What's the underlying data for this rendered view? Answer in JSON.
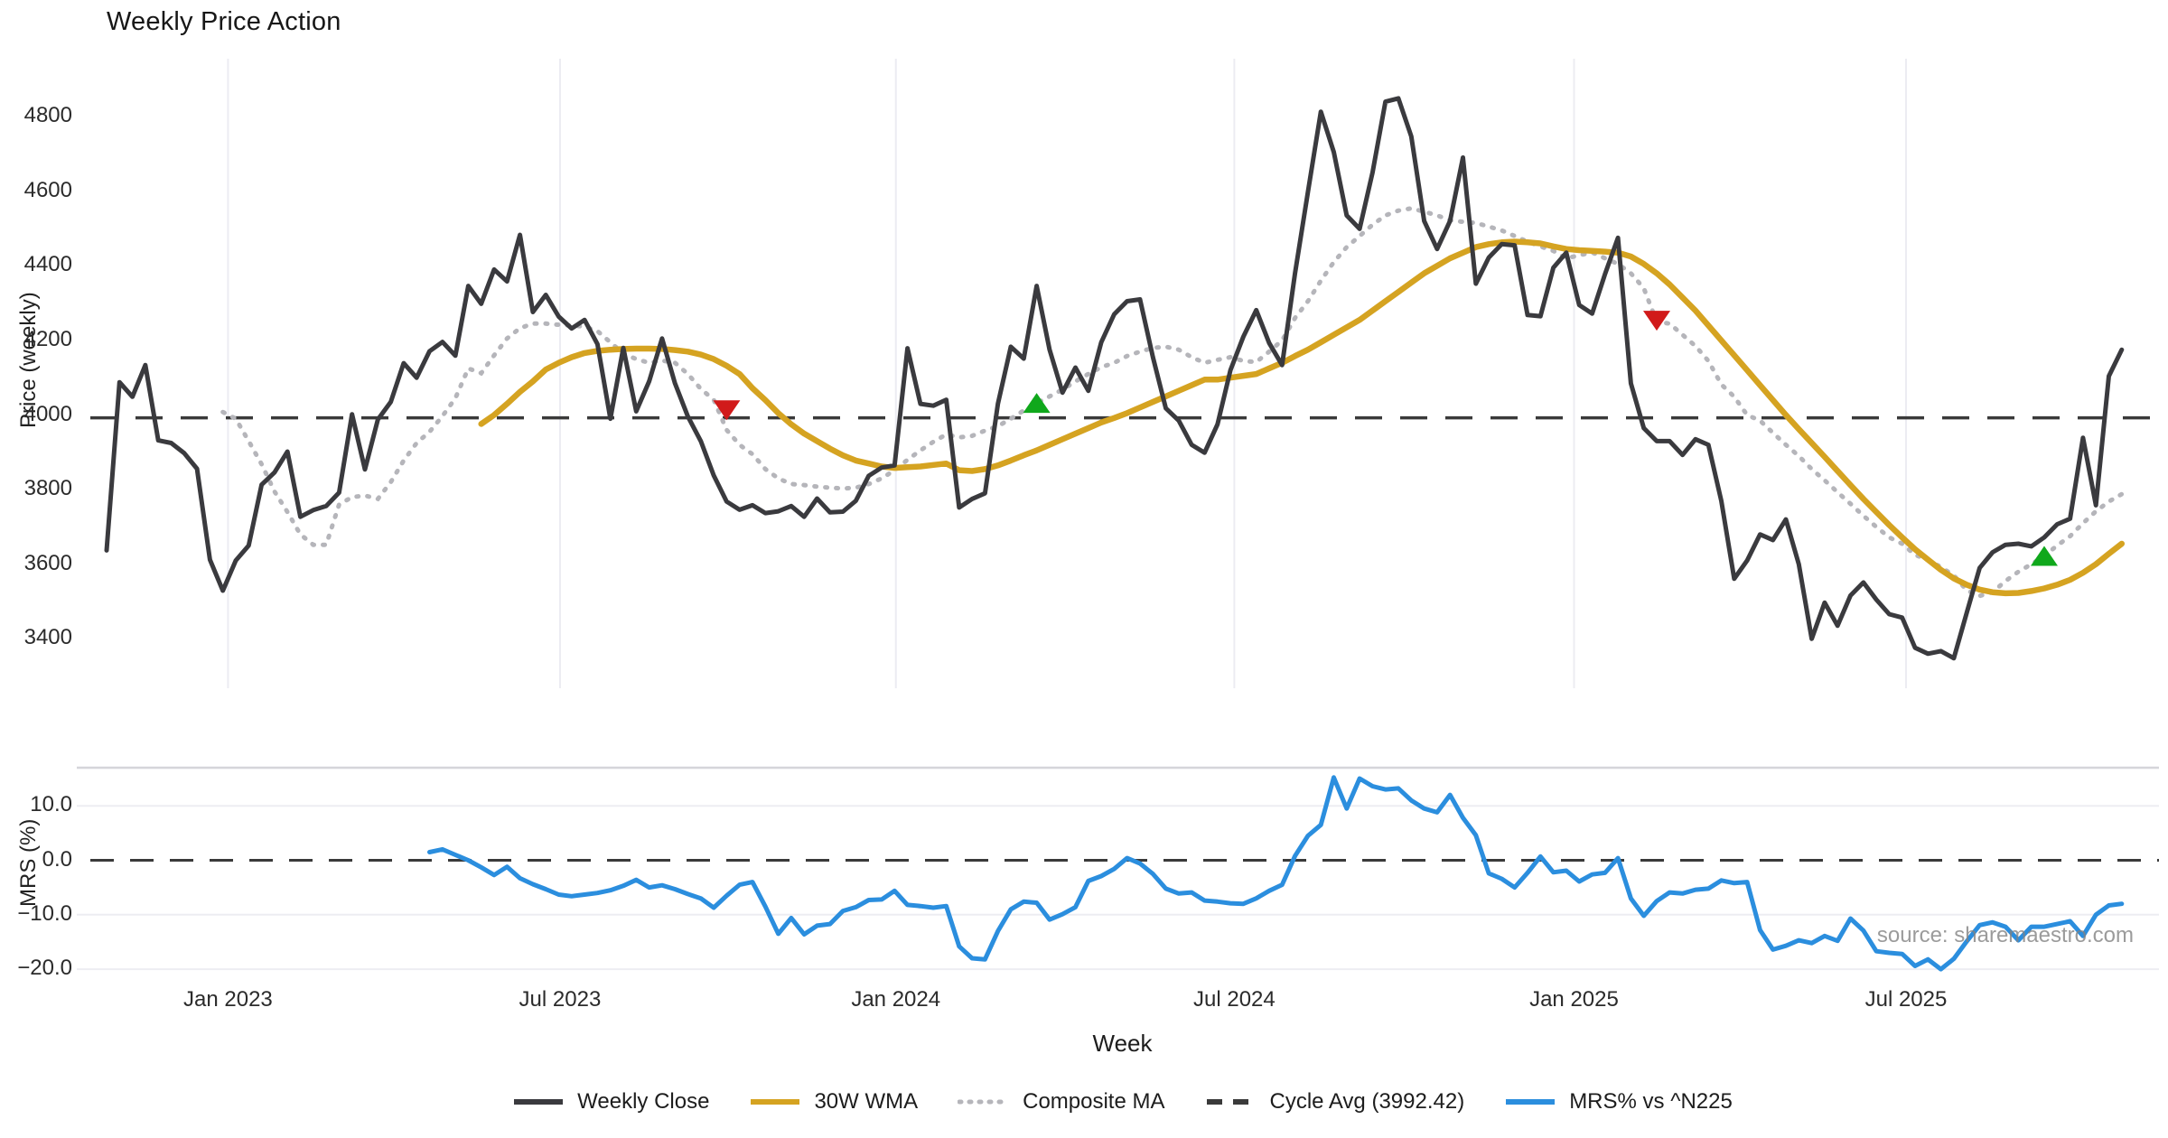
{
  "title": "Weekly Price Action",
  "xlabel": "Week",
  "source": "source: sharemaestro.com",
  "top_chart": {
    "ylabel": "Price (weekly)",
    "yticks": [
      {
        "label": "4800",
        "value": 4800
      },
      {
        "label": "4600",
        "value": 4600
      },
      {
        "label": "4400",
        "value": 4400
      },
      {
        "label": "4200",
        "value": 4200
      },
      {
        "label": "4000",
        "value": 4000
      },
      {
        "label": "3800",
        "value": 3800
      },
      {
        "label": "3600",
        "value": 3600
      },
      {
        "label": "3400",
        "value": 3400
      }
    ]
  },
  "bottom_chart": {
    "ylabel": "MRS (%)",
    "yticks": [
      {
        "label": "10.0",
        "value": 10
      },
      {
        "label": "0.0",
        "value": 0
      },
      {
        "label": "−10.0",
        "value": -10
      },
      {
        "label": "−20.0",
        "value": -20
      }
    ]
  },
  "x_ticks": [
    {
      "label": "Jan 2023",
      "week": 9.4
    },
    {
      "label": "Jul 2023",
      "week": 35.1
    },
    {
      "label": "Jan 2024",
      "week": 61.1
    },
    {
      "label": "Jul 2024",
      "week": 87.3
    },
    {
      "label": "Jan 2025",
      "week": 113.6
    },
    {
      "label": "Jul 2025",
      "week": 139.3
    }
  ],
  "legend": [
    {
      "label": "Weekly Close",
      "style": "solid",
      "color": "#3a3a3e"
    },
    {
      "label": "30W WMA",
      "style": "solid",
      "color": "#d5a321"
    },
    {
      "label": "Composite MA",
      "style": "dotted",
      "color": "#b5b5ba"
    },
    {
      "label": "Cycle Avg (3992.42)",
      "style": "dashed",
      "color": "#3a3a3a"
    },
    {
      "label": "MRS% vs ^N225",
      "style": "solid",
      "color": "#2b8ede"
    }
  ],
  "colors": {
    "close": "#3a3a3e",
    "wma": "#d5a321",
    "composite": "#b5b5ba",
    "cycle": "#3a3a3a",
    "mrs": "#2b8ede",
    "buy_marker": "#10a81c",
    "sell_marker": "#d11a1a",
    "gridline": "#ececf2",
    "panel_border": "#d5d5da",
    "hgrid": "#ededf2"
  },
  "chart_data": [
    {
      "type": "line",
      "title": "Weekly Price Action",
      "xlabel": "Week",
      "ylabel": "Price (weekly)",
      "ylim": [
        3268,
        4956
      ],
      "grid": "vertical-only",
      "legend_position": "bottom",
      "x_unit": "week index (w0 ≈ late Oct 2022, 14.3px/week)",
      "cycle_avg": 3992.42,
      "series": [
        {
          "name": "Weekly Close",
          "start_week": 0,
          "values": [
            3637,
            4088,
            4049,
            4134,
            3932,
            3925,
            3898,
            3856,
            3612,
            3529,
            3610,
            3650,
            3813,
            3846,
            3902,
            3727,
            3745,
            3756,
            3792,
            4002,
            3854,
            3988,
            4035,
            4139,
            4100,
            4171,
            4196,
            4159,
            4346,
            4298,
            4390,
            4358,
            4483,
            4276,
            4322,
            4264,
            4232,
            4255,
            4190,
            3990,
            4180,
            4010,
            4090,
            4205,
            4085,
            3996,
            3930,
            3838,
            3768,
            3746,
            3758,
            3737,
            3742,
            3756,
            3727,
            3776,
            3739,
            3741,
            3770,
            3837,
            3859,
            3865,
            4179,
            4030,
            4025,
            4041,
            3752,
            3775,
            3790,
            4030,
            4183,
            4151,
            4346,
            4175,
            4060,
            4127,
            4065,
            4195,
            4270,
            4305,
            4310,
            4155,
            4018,
            3985,
            3920,
            3899,
            3975,
            4120,
            4210,
            4281,
            4193,
            4134,
            4380,
            4598,
            4813,
            4705,
            4535,
            4499,
            4650,
            4840,
            4849,
            4747,
            4520,
            4445,
            4520,
            4690,
            4352,
            4422,
            4458,
            4455,
            4268,
            4265,
            4395,
            4435,
            4295,
            4272,
            4378,
            4475,
            4085,
            3965,
            3930,
            3930,
            3893,
            3935,
            3920,
            3770,
            3561,
            3610,
            3680,
            3665,
            3720,
            3600,
            3400,
            3497,
            3435,
            3516,
            3551,
            3505,
            3466,
            3457,
            3376,
            3360,
            3367,
            3348,
            3470,
            3590,
            3632,
            3652,
            3655,
            3648,
            3672,
            3707,
            3722,
            3939,
            3758,
            4104,
            4175
          ]
        },
        {
          "name": "30W WMA",
          "start_week": 29,
          "values": [
            3976,
            4000,
            4030,
            4062,
            4090,
            4122,
            4140,
            4155,
            4166,
            4172,
            4175,
            4177,
            4178,
            4178,
            4177,
            4174,
            4170,
            4162,
            4150,
            4132,
            4110,
            4072,
            4040,
            4005,
            3975,
            3950,
            3930,
            3910,
            3892,
            3878,
            3870,
            3862,
            3858,
            3860,
            3862,
            3866,
            3870,
            3852,
            3850,
            3855,
            3865,
            3878,
            3892,
            3905,
            3920,
            3935,
            3950,
            3965,
            3980,
            3992,
            4005,
            4020,
            4035,
            4050,
            4065,
            4080,
            4095,
            4095,
            4100,
            4105,
            4110,
            4125,
            4140,
            4158,
            4175,
            4195,
            4215,
            4235,
            4255,
            4280,
            4305,
            4330,
            4355,
            4380,
            4400,
            4420,
            4435,
            4450,
            4458,
            4463,
            4465,
            4463,
            4460,
            4452,
            4445,
            4442,
            4440,
            4438,
            4435,
            4425,
            4405,
            4380,
            4350,
            4315,
            4280,
            4240,
            4200,
            4160,
            4120,
            4080,
            4040,
            4000,
            3962,
            3925,
            3888,
            3850,
            3812,
            3775,
            3740,
            3705,
            3672,
            3640,
            3612,
            3585,
            3562,
            3545,
            3532,
            3525,
            3522,
            3523,
            3528,
            3535,
            3545,
            3558,
            3577,
            3600,
            3628,
            3655
          ]
        },
        {
          "name": "Composite MA",
          "start_week": 9,
          "values": [
            4008,
            3990,
            3930,
            3868,
            3795,
            3740,
            3680,
            3652,
            3652,
            3760,
            3780,
            3784,
            3775,
            3820,
            3878,
            3925,
            3955,
            3997,
            4045,
            4125,
            4112,
            4160,
            4205,
            4233,
            4245,
            4245,
            4242,
            4240,
            4237,
            4225,
            4195,
            4165,
            4150,
            4140,
            4146,
            4140,
            4110,
            4070,
            4041,
            3960,
            3920,
            3895,
            3855,
            3830,
            3815,
            3812,
            3808,
            3805,
            3803,
            3805,
            3815,
            3830,
            3852,
            3880,
            3905,
            3928,
            3948,
            3940,
            3944,
            3958,
            3970,
            3990,
            4012,
            4032,
            4050,
            4068,
            4090,
            4110,
            4128,
            4140,
            4158,
            4170,
            4180,
            4183,
            4175,
            4155,
            4140,
            4148,
            4155,
            4145,
            4142,
            4170,
            4200,
            4260,
            4305,
            4360,
            4410,
            4450,
            4480,
            4510,
            4535,
            4548,
            4554,
            4545,
            4535,
            4522,
            4518,
            4515,
            4505,
            4495,
            4480,
            4465,
            4452,
            4440,
            4420,
            4428,
            4436,
            4420,
            4405,
            4380,
            4340,
            4250,
            4245,
            4215,
            4185,
            4145,
            4082,
            4049,
            4000,
            3985,
            3952,
            3920,
            3890,
            3855,
            3825,
            3793,
            3762,
            3730,
            3700,
            3672,
            3655,
            3625,
            3612,
            3592,
            3570,
            3530,
            3515,
            3525,
            3555,
            3580,
            3600,
            3622,
            3650,
            3675,
            3710,
            3742,
            3768,
            3788
          ]
        },
        {
          "name": "Cycle Avg (3992.42)",
          "style": "horizontal-dashed",
          "value": 3992.42
        }
      ],
      "markers": {
        "sell": [
          {
            "week": 48,
            "price": 4015
          },
          {
            "week": 120,
            "price": 4255
          }
        ],
        "buy": [
          {
            "week": 72,
            "price": 4030
          },
          {
            "week": 150,
            "price": 3620
          }
        ]
      },
      "xticklabels": [
        "Jan 2023",
        "Jul 2023",
        "Jan 2024",
        "Jul 2024",
        "Jan 2025",
        "Jul 2025"
      ]
    },
    {
      "type": "line",
      "ylabel": "MRS (%)",
      "ylim": [
        -21.2,
        16.9
      ],
      "zero_line": true,
      "series": [
        {
          "name": "MRS% vs ^N225",
          "start_week": 25,
          "values": [
            1.5,
            2.0,
            1.0,
            0.0,
            -1.3,
            -2.7,
            -1.2,
            -3.3,
            -4.4,
            -5.3,
            -6.3,
            -6.6,
            -6.3,
            -6.0,
            -5.5,
            -4.7,
            -3.6,
            -5.0,
            -4.6,
            -5.3,
            -6.2,
            -7.0,
            -8.7,
            -6.5,
            -4.5,
            -4.0,
            -8.5,
            -13.5,
            -10.6,
            -13.6,
            -12.0,
            -11.7,
            -9.3,
            -8.6,
            -7.3,
            -7.2,
            -5.6,
            -8.2,
            -8.4,
            -8.7,
            -8.4,
            -15.8,
            -18.0,
            -18.2,
            -13.0,
            -9.0,
            -7.6,
            -7.8,
            -10.9,
            -9.9,
            -8.6,
            -3.8,
            -2.9,
            -1.6,
            0.4,
            -0.6,
            -2.5,
            -5.2,
            -6.1,
            -5.9,
            -7.4,
            -7.6,
            -7.9,
            -8.0,
            -7.0,
            -5.6,
            -4.5,
            0.8,
            4.5,
            6.5,
            15.2,
            9.5,
            15.0,
            13.6,
            13.0,
            13.2,
            11.0,
            9.5,
            8.8,
            12.0,
            7.8,
            4.6,
            -2.4,
            -3.4,
            -5.0,
            -2.3,
            0.7,
            -2.2,
            -1.9,
            -3.9,
            -2.6,
            -2.3,
            0.4,
            -7.0,
            -10.2,
            -7.5,
            -5.9,
            -6.1,
            -5.4,
            -5.2,
            -3.7,
            -4.2,
            -4.0,
            -12.8,
            -16.4,
            -15.7,
            -14.7,
            -15.2,
            -13.9,
            -14.8,
            -10.7,
            -12.9,
            -16.7,
            -17.0,
            -17.2,
            -19.4,
            -18.2,
            -20.0,
            -18.1,
            -14.9,
            -11.9,
            -11.4,
            -12.2,
            -14.7,
            -12.2,
            -12.2,
            -11.7,
            -11.2,
            -13.9,
            -10.0,
            -8.3,
            -8.0
          ]
        }
      ]
    }
  ]
}
